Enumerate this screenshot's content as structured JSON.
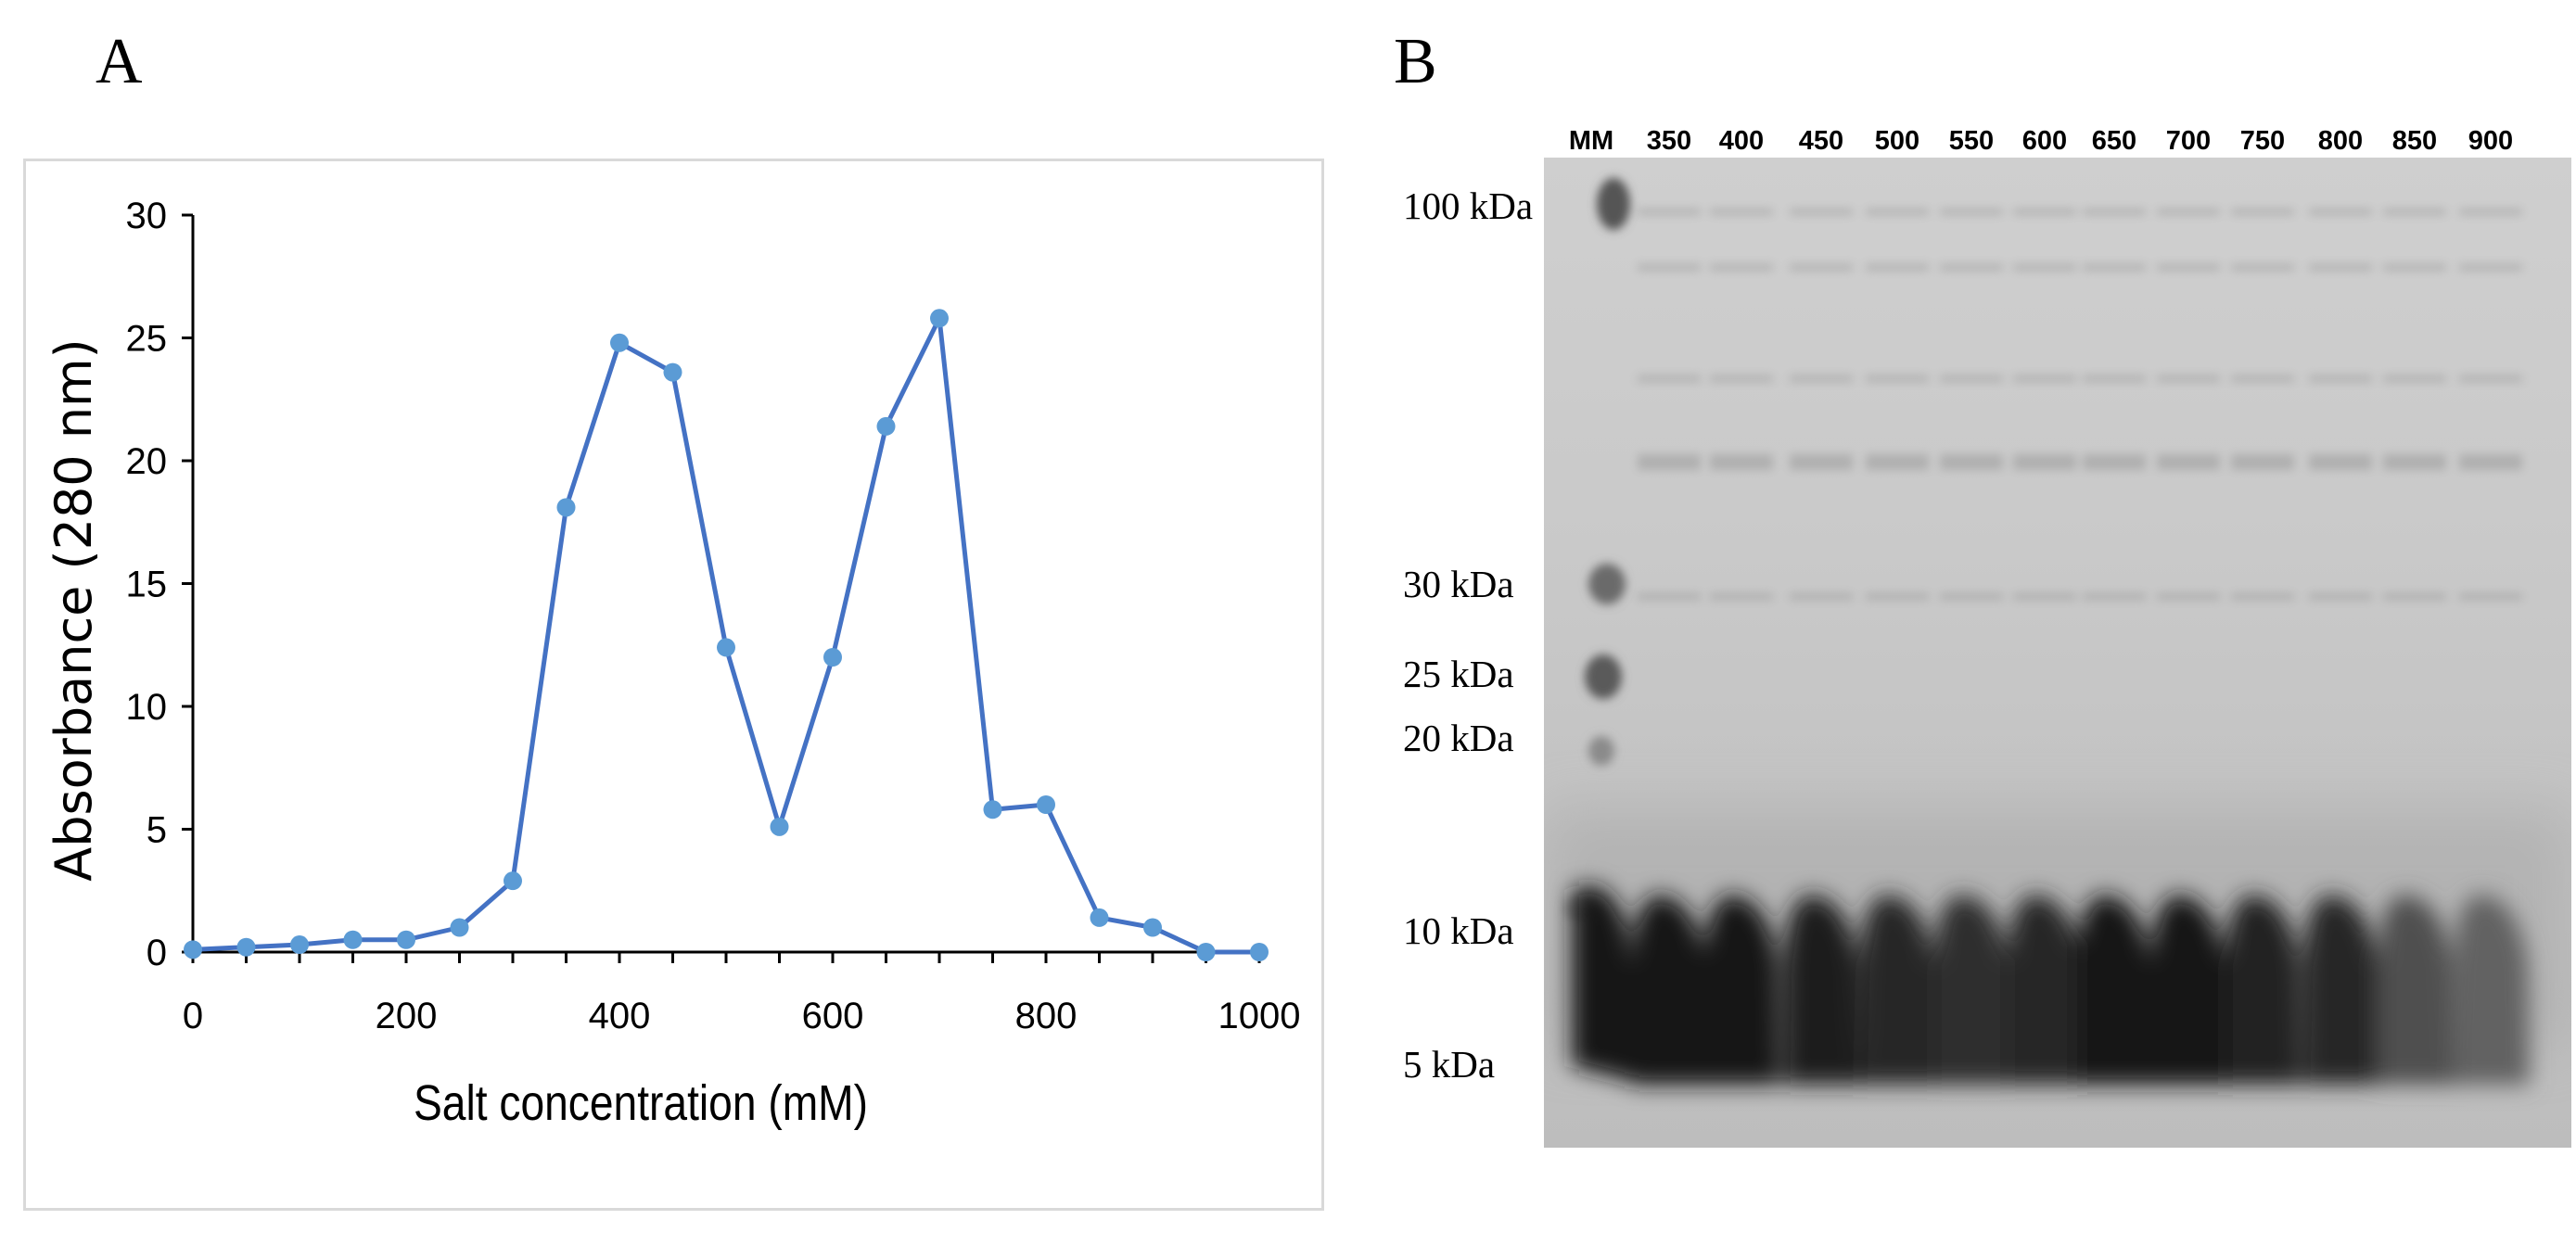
{
  "panels": {
    "a_label": "A",
    "b_label": "B"
  },
  "chart_data": {
    "type": "line",
    "title": "",
    "xlabel": "Salt concentration (mM)",
    "ylabel": "Absorbance (280 nm)",
    "xlim": [
      0,
      1000
    ],
    "ylim": [
      0,
      30
    ],
    "xticks": [
      0,
      200,
      400,
      600,
      800,
      1000
    ],
    "yticks": [
      0,
      5,
      10,
      15,
      20,
      25,
      30
    ],
    "grid": false,
    "series": [
      {
        "name": "Absorbance",
        "color": "#4472c4",
        "marker_color": "#5b9bd5",
        "x": [
          0,
          50,
          100,
          150,
          200,
          250,
          300,
          350,
          400,
          450,
          500,
          550,
          600,
          650,
          700,
          750,
          800,
          850,
          900,
          950,
          1000
        ],
        "y": [
          0.1,
          0.2,
          0.3,
          0.5,
          0.5,
          1.0,
          2.9,
          18.1,
          24.8,
          23.6,
          12.4,
          5.1,
          12.0,
          21.4,
          25.8,
          5.8,
          6.0,
          1.4,
          1.0,
          0.0,
          0.0
        ]
      }
    ]
  },
  "gel": {
    "lanes": [
      "MM",
      "350",
      "400",
      "450",
      "500",
      "550",
      "600",
      "650",
      "700",
      "750",
      "800",
      "850",
      "900"
    ],
    "markers": [
      "100 kDa",
      "30 kDa",
      "25 kDa",
      "20 kDa",
      "10 kDa",
      "5 kDa"
    ]
  }
}
